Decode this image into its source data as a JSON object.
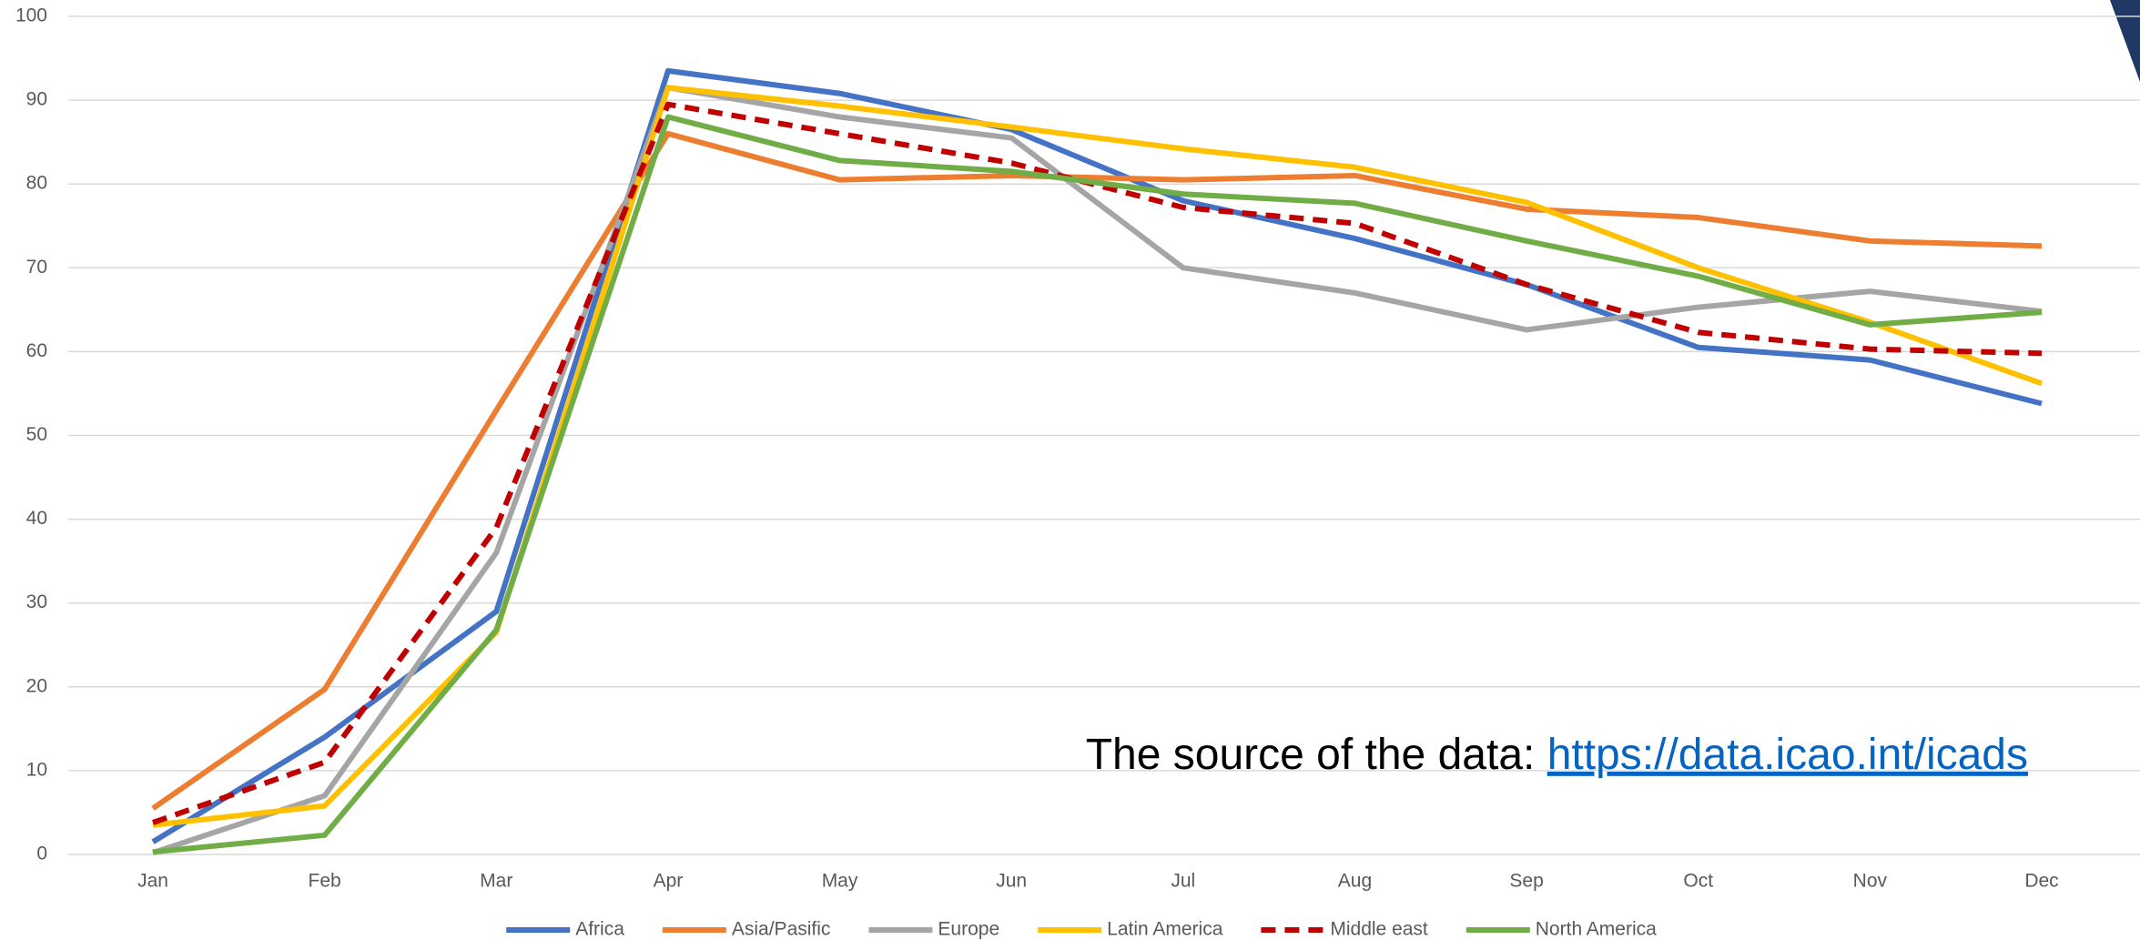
{
  "chart_data": {
    "type": "line",
    "categories": [
      "Jan",
      "Feb",
      "Mar",
      "Apr",
      "May",
      "Jun",
      "Jul",
      "Aug",
      "Sep",
      "Oct",
      "Nov",
      "Dec"
    ],
    "series": [
      {
        "name": "Africa",
        "color": "#4472c4",
        "values": [
          1.5,
          14,
          29,
          93.5,
          90.8,
          86.5,
          78,
          73.5,
          68,
          60.5,
          59,
          53.8
        ]
      },
      {
        "name": "Asia/Pasific",
        "color": "#ed7d31",
        "values": [
          5.5,
          19.7,
          53,
          86,
          80.5,
          81,
          80.5,
          81,
          77,
          76,
          73.2,
          72.6
        ]
      },
      {
        "name": "Europe",
        "color": "#a5a5a5",
        "values": [
          0.2,
          7,
          36,
          91.5,
          88,
          85.5,
          70,
          67,
          62.6,
          65.3,
          67.2,
          64.8
        ]
      },
      {
        "name": "Latin America",
        "color": "#ffc000",
        "values": [
          3.5,
          5.8,
          26.5,
          91.5,
          89.3,
          86.8,
          84.2,
          82,
          77.8,
          70,
          63.5,
          56.2
        ]
      },
      {
        "name": "Middle east",
        "color": "#c00000",
        "dashed": true,
        "values": [
          3.8,
          11,
          39,
          89.5,
          86,
          82.5,
          77.2,
          75.3,
          68,
          62.3,
          60.3,
          59.8
        ]
      },
      {
        "name": "North America",
        "color": "#70ad47",
        "values": [
          0.3,
          2.3,
          26.8,
          88,
          82.8,
          81.5,
          78.8,
          77.7,
          73.2,
          69,
          63.2,
          64.7
        ]
      }
    ],
    "ylim": [
      0,
      100
    ],
    "yticks": [
      0,
      10,
      20,
      30,
      40,
      50,
      60,
      70,
      80,
      90,
      100
    ],
    "grid": true,
    "legend": "bottom",
    "annotation": {
      "text": "The source of the data: ",
      "link": "https://data.icao.int/icads"
    }
  }
}
